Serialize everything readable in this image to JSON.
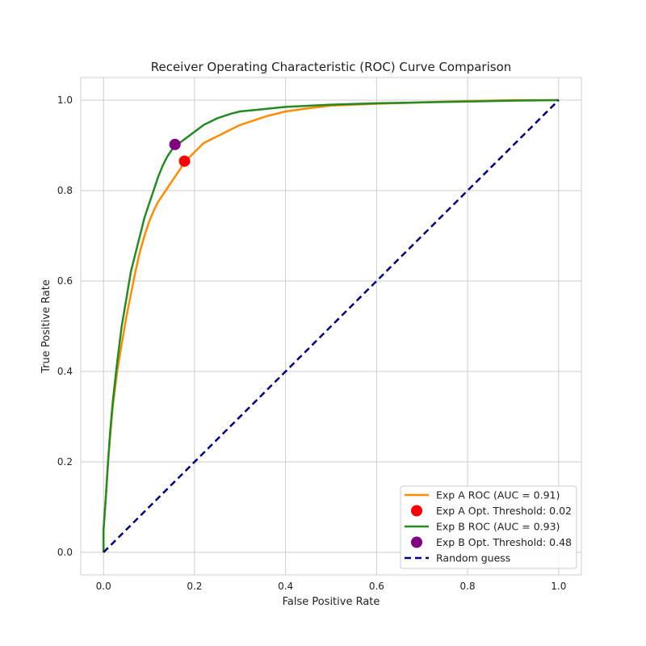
{
  "chart_data": {
    "type": "line",
    "title": "Receiver Operating Characteristic (ROC) Curve Comparison",
    "xlabel": "False Positive Rate",
    "ylabel": "True Positive Rate",
    "xlim": [
      -0.05,
      1.05
    ],
    "ylim": [
      -0.05,
      1.05
    ],
    "xticks": [
      "0.0",
      "0.2",
      "0.4",
      "0.6",
      "0.8",
      "1.0"
    ],
    "yticks": [
      "0.0",
      "0.2",
      "0.4",
      "0.6",
      "0.8",
      "1.0"
    ],
    "grid": true,
    "legend_position": "bottom-right",
    "series": [
      {
        "name": "Exp A ROC (AUC = 0.91)",
        "kind": "line",
        "color": "#ff8c00",
        "x": [
          0.0,
          0.0,
          0.005,
          0.01,
          0.015,
          0.02,
          0.03,
          0.04,
          0.05,
          0.06,
          0.07,
          0.08,
          0.09,
          0.1,
          0.11,
          0.12,
          0.13,
          0.14,
          0.15,
          0.16,
          0.17,
          0.18,
          0.2,
          0.22,
          0.25,
          0.28,
          0.3,
          0.33,
          0.36,
          0.4,
          0.45,
          0.5,
          0.6,
          0.7,
          0.8,
          0.9,
          1.0
        ],
        "y": [
          0.0,
          0.05,
          0.12,
          0.2,
          0.26,
          0.32,
          0.4,
          0.46,
          0.52,
          0.57,
          0.62,
          0.665,
          0.7,
          0.73,
          0.755,
          0.775,
          0.79,
          0.805,
          0.82,
          0.835,
          0.85,
          0.865,
          0.885,
          0.905,
          0.92,
          0.935,
          0.945,
          0.955,
          0.965,
          0.975,
          0.982,
          0.988,
          0.992,
          0.995,
          0.998,
          1.0,
          1.0
        ]
      },
      {
        "name": "Exp A Opt. Threshold: 0.02",
        "kind": "point",
        "color": "#ff0000",
        "x": [
          0.178
        ],
        "y": [
          0.865
        ]
      },
      {
        "name": "Exp B ROC (AUC = 0.93)",
        "kind": "line",
        "color": "#228b22",
        "x": [
          0.0,
          0.0,
          0.005,
          0.01,
          0.015,
          0.02,
          0.03,
          0.04,
          0.05,
          0.06,
          0.07,
          0.08,
          0.09,
          0.1,
          0.11,
          0.12,
          0.13,
          0.14,
          0.15,
          0.16,
          0.18,
          0.2,
          0.22,
          0.25,
          0.28,
          0.3,
          0.35,
          0.4,
          0.5,
          0.6,
          0.7,
          0.8,
          0.9,
          1.0
        ],
        "y": [
          0.0,
          0.05,
          0.12,
          0.2,
          0.27,
          0.33,
          0.42,
          0.5,
          0.56,
          0.62,
          0.66,
          0.7,
          0.74,
          0.77,
          0.8,
          0.83,
          0.855,
          0.875,
          0.89,
          0.9,
          0.915,
          0.93,
          0.945,
          0.96,
          0.97,
          0.975,
          0.98,
          0.985,
          0.99,
          0.993,
          0.995,
          0.997,
          0.999,
          1.0
        ]
      },
      {
        "name": "Exp B Opt. Threshold: 0.48",
        "kind": "point",
        "color": "#800080",
        "x": [
          0.157
        ],
        "y": [
          0.902
        ]
      },
      {
        "name": "Random guess",
        "kind": "dashed",
        "color": "#000080",
        "x": [
          0.0,
          1.0
        ],
        "y": [
          0.0,
          1.0
        ]
      }
    ]
  }
}
